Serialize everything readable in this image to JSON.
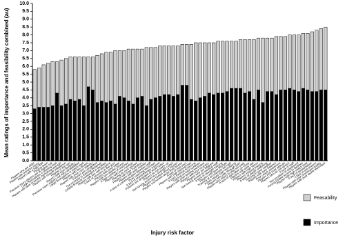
{
  "chart_data": {
    "type": "stacked_bar",
    "y_label": "Mean ratings of importance and feasibility combined (au)",
    "x_label": "Injury risk factor",
    "categories": [
      "Players who are older",
      "Players with previous injury",
      "Players with a high BMI",
      "Playing team",
      "Previous injury players are at higher risk",
      "Large fluctuations in training load",
      "Players with poor eccentric hamstring strength",
      "Players with muscle imbalance",
      "Playing in the rain",
      "Players with poor flexibility",
      "Previous injury players not fully rehabilitated",
      "Large fluctuations in match load",
      "Players with low fitness",
      "Players with poor core stability",
      "Fixtures are congested",
      "The increase in training demands",
      "Limited financial investment in facilities",
      "Players with low self-discipline",
      "A lack of recovery in the gym",
      "Players with poor sleep",
      "Players with low aerobic fitness",
      "A high number of matches",
      "Players with poor nutrition",
      "Playing on poor pitches",
      "Players with poor hydration",
      "Players with poor mobility",
      "A lack of communication between staff",
      "Poor coaching technique",
      "A lack of physiotherapy support",
      "Fixtures are arranged at short notice",
      "Players do not warm up",
      "Not having access to a strength coach",
      "Players not honest about injuries",
      "Players not honest about their fitness",
      "A lack of rest days",
      "Players with high training load",
      "A poor medical screening",
      "Training on hard surfaces",
      "Players with poor landing technique",
      "Players with poor recovery",
      "Players who are fatigued",
      "Not having access to medical staff",
      "A lack of strength training",
      "Players with poor lifestyle",
      "Training at an intensity too high",
      "A poor player load monitoring",
      "Players who play through pain",
      "Players who return to play too early",
      "A lack of education on injury",
      "Players with poor diet",
      "Players with high stress",
      "Players missing training",
      "A lack of player wellbeing",
      "Training in poor weather",
      "Players with poor balance",
      "Poor coach awareness",
      "Players with poor attitude",
      "Players who do not stretch",
      "A lack of staff",
      "The condition of equipment",
      "Having limited access to facilities",
      "Players with high match load",
      "A lack of periodisation",
      "A lack of pre-season",
      "Players with poor movement quality",
      "Players with poor tackle technique"
    ],
    "series": [
      {
        "name": "Importance",
        "color": "#000000",
        "values": [
          3.3,
          3.4,
          3.4,
          3.4,
          3.5,
          4.3,
          3.5,
          3.6,
          3.9,
          3.8,
          3.9,
          3.5,
          4.7,
          4.5,
          3.7,
          3.8,
          3.7,
          3.8,
          3.6,
          4.1,
          4.0,
          3.8,
          3.6,
          4.0,
          4.1,
          3.5,
          3.9,
          4.0,
          4.1,
          4.2,
          4.2,
          4.1,
          4.2,
          4.8,
          4.8,
          3.9,
          3.8,
          4.0,
          4.1,
          4.3,
          4.2,
          4.3,
          4.3,
          4.4,
          4.6,
          4.6,
          4.6,
          4.3,
          4.4,
          3.9,
          4.5,
          3.7,
          4.4,
          4.4,
          4.2,
          4.5,
          4.5,
          4.6,
          4.5,
          4.4,
          4.6,
          4.5,
          4.4,
          4.4,
          4.5,
          4.5
        ]
      },
      {
        "name": "Feasability",
        "color": "#d0d0d0",
        "values": [
          2.5,
          2.5,
          2.7,
          2.8,
          2.8,
          2.0,
          2.9,
          2.9,
          2.7,
          2.8,
          2.7,
          3.1,
          1.9,
          2.1,
          3.0,
          3.0,
          3.2,
          3.1,
          3.4,
          2.9,
          3.0,
          3.3,
          3.5,
          3.1,
          3.0,
          3.7,
          3.3,
          3.2,
          3.2,
          3.1,
          3.1,
          3.2,
          3.1,
          2.6,
          2.6,
          3.5,
          3.7,
          3.5,
          3.4,
          3.2,
          3.3,
          3.3,
          3.3,
          3.2,
          3.0,
          3.0,
          3.1,
          3.4,
          3.3,
          3.8,
          3.3,
          4.1,
          3.4,
          3.4,
          3.7,
          3.4,
          3.4,
          3.4,
          3.5,
          3.6,
          3.5,
          3.6,
          3.8,
          3.9,
          3.9,
          4.0
        ]
      }
    ],
    "ylim": [
      0,
      10
    ],
    "yticks": [
      {
        "value": 0,
        "label": "0.0"
      },
      0.5,
      {
        "value": 1,
        "label": "1.0"
      },
      1.5,
      {
        "value": 2,
        "label": "2.0"
      },
      2.5,
      {
        "value": 3,
        "label": "3.0"
      },
      3.5,
      {
        "value": 4,
        "label": "4.0"
      },
      4.5,
      {
        "value": 5,
        "label": "5.0"
      },
      5.5,
      {
        "value": 6,
        "label": "6.0"
      },
      6.5,
      {
        "value": 7,
        "label": "7.0"
      },
      7.5,
      {
        "value": 8,
        "label": "8.0"
      },
      8.5,
      {
        "value": 9,
        "label": "9.0"
      },
      9.5,
      {
        "value": 10,
        "label": "10.0"
      }
    ],
    "legend": "bottom-right"
  }
}
